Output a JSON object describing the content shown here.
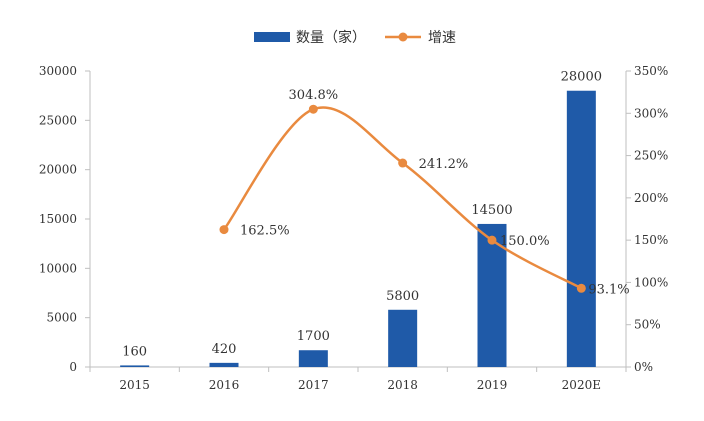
{
  "chart_data": {
    "type": "bar+line",
    "categories": [
      "2015",
      "2016",
      "2017",
      "2018",
      "2019",
      "2020E"
    ],
    "series": [
      {
        "name": "数量（家）",
        "type": "bar",
        "axis": "left",
        "color": "#1f5aa8",
        "values": [
          160,
          420,
          1700,
          5800,
          14500,
          28000
        ],
        "labels": [
          "160",
          "420",
          "1700",
          "5800",
          "14500",
          "28000"
        ]
      },
      {
        "name": "增速",
        "type": "line",
        "axis": "right",
        "color": "#e98a3f",
        "values": [
          null,
          162.5,
          304.8,
          241.2,
          150.0,
          93.1
        ],
        "labels": [
          "",
          "162.5%",
          "304.8%",
          "241.2%",
          "150.0%",
          "93.1%"
        ]
      }
    ],
    "y_left": {
      "ylim": [
        0,
        30000
      ],
      "ticks": [
        "0",
        "5000",
        "10000",
        "15000",
        "20000",
        "25000",
        "30000"
      ]
    },
    "y_right": {
      "ylim": [
        0,
        350
      ],
      "ticks": [
        "0%",
        "50%",
        "100%",
        "150%",
        "200%",
        "250%",
        "300%",
        "350%"
      ]
    },
    "legend_position": "top-center",
    "grid": false
  }
}
